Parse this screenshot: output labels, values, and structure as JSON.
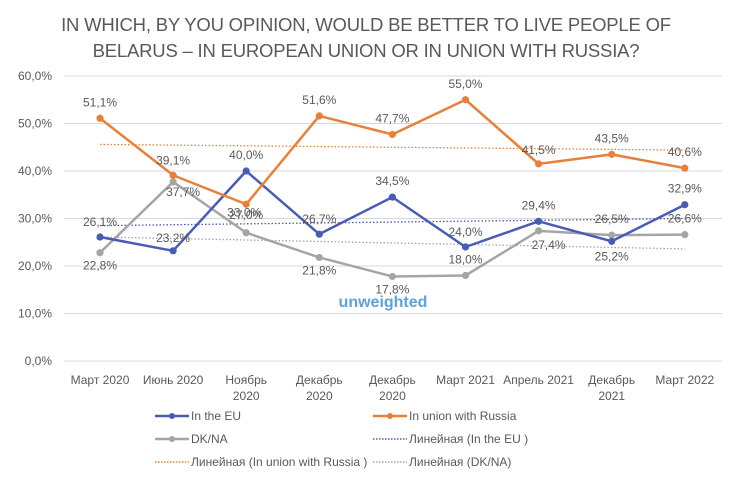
{
  "chart_data": {
    "type": "line",
    "title_lines": [
      "IN WHICH, BY YOU OPINION, WOULD BE BETTER TO LIVE PEOPLE OF",
      "BELARUS – IN EUROPEAN UNION OR IN UNION WITH RUSSIA?"
    ],
    "categories": [
      [
        "Март 2020"
      ],
      [
        "Июнь 2020"
      ],
      [
        "Ноябрь",
        "2020"
      ],
      [
        "Декабрь",
        "2020"
      ],
      [
        "Декабрь",
        "2020"
      ],
      [
        "Март 2021"
      ],
      [
        "Апрель 2021"
      ],
      [
        "Декабрь",
        "2021"
      ],
      [
        "Март 2022"
      ]
    ],
    "ylim": [
      0,
      60
    ],
    "yticks": [
      0,
      10,
      20,
      30,
      40,
      50,
      60
    ],
    "ytick_labels": [
      "0,0%",
      "10,0%",
      "20,0%",
      "30,0%",
      "40,0%",
      "50,0%",
      "60,0%"
    ],
    "grid": true,
    "series": [
      {
        "name": "In the EU",
        "color": "#4A5BB5",
        "values": [
          26.1,
          23.2,
          40.0,
          26.7,
          34.5,
          24.0,
          29.4,
          25.2,
          32.9
        ],
        "labels": [
          "26,1%",
          "23,2%",
          "40,0%",
          "26,7%",
          "34,5%",
          "24,0%",
          "29,4%",
          "25,2%",
          "32,9%"
        ]
      },
      {
        "name": "In union with Russia",
        "color": "#E8803A",
        "values": [
          51.1,
          39.1,
          33.0,
          51.6,
          47.7,
          55.0,
          41.5,
          43.5,
          40.6
        ],
        "labels": [
          "51,1%",
          "39,1%",
          "33,0%",
          "51,6%",
          "47,7%",
          "55,0%",
          "41,5%",
          "43,5%",
          "40,6%"
        ]
      },
      {
        "name": "DK/NA",
        "color": "#A5A5A5",
        "values": [
          22.8,
          37.7,
          27.0,
          21.8,
          17.8,
          18.0,
          27.4,
          26.5,
          26.6
        ],
        "labels": [
          "22,8%",
          "37,7%",
          "27,0%",
          "21,8%",
          "17,8%",
          "18,0%",
          "27,4%",
          "26,5%",
          "26,6%"
        ]
      }
    ],
    "trendlines": [
      {
        "name": "Линейная (In the EU )",
        "color": "#4A5BB5",
        "start": 28.5,
        "end": 30.0
      },
      {
        "name": "Линейная (In union with Russia )",
        "color": "#E8803A",
        "start": 45.6,
        "end": 44.4
      },
      {
        "name": "Линейная (DK/NA)",
        "color": "#A5A5A5",
        "start": 26.1,
        "end": 23.6
      }
    ],
    "annotation": "unweighted",
    "legend_position": "bottom"
  },
  "legend": {
    "items": [
      {
        "label": "In the EU",
        "kind": "line",
        "color": "#4A5BB5"
      },
      {
        "label": "In union with Russia",
        "kind": "line",
        "color": "#E8803A"
      },
      {
        "label": "DK/NA",
        "kind": "line",
        "color": "#A5A5A5"
      },
      {
        "label": "Линейная (In the EU )",
        "kind": "dotted",
        "color": "#4A5BB5"
      },
      {
        "label": "Линейная (In union with Russia )",
        "kind": "dotted",
        "color": "#E8803A"
      },
      {
        "label": "Линейная (DK/NA)",
        "kind": "dotted",
        "color": "#A5A5A5"
      }
    ]
  }
}
